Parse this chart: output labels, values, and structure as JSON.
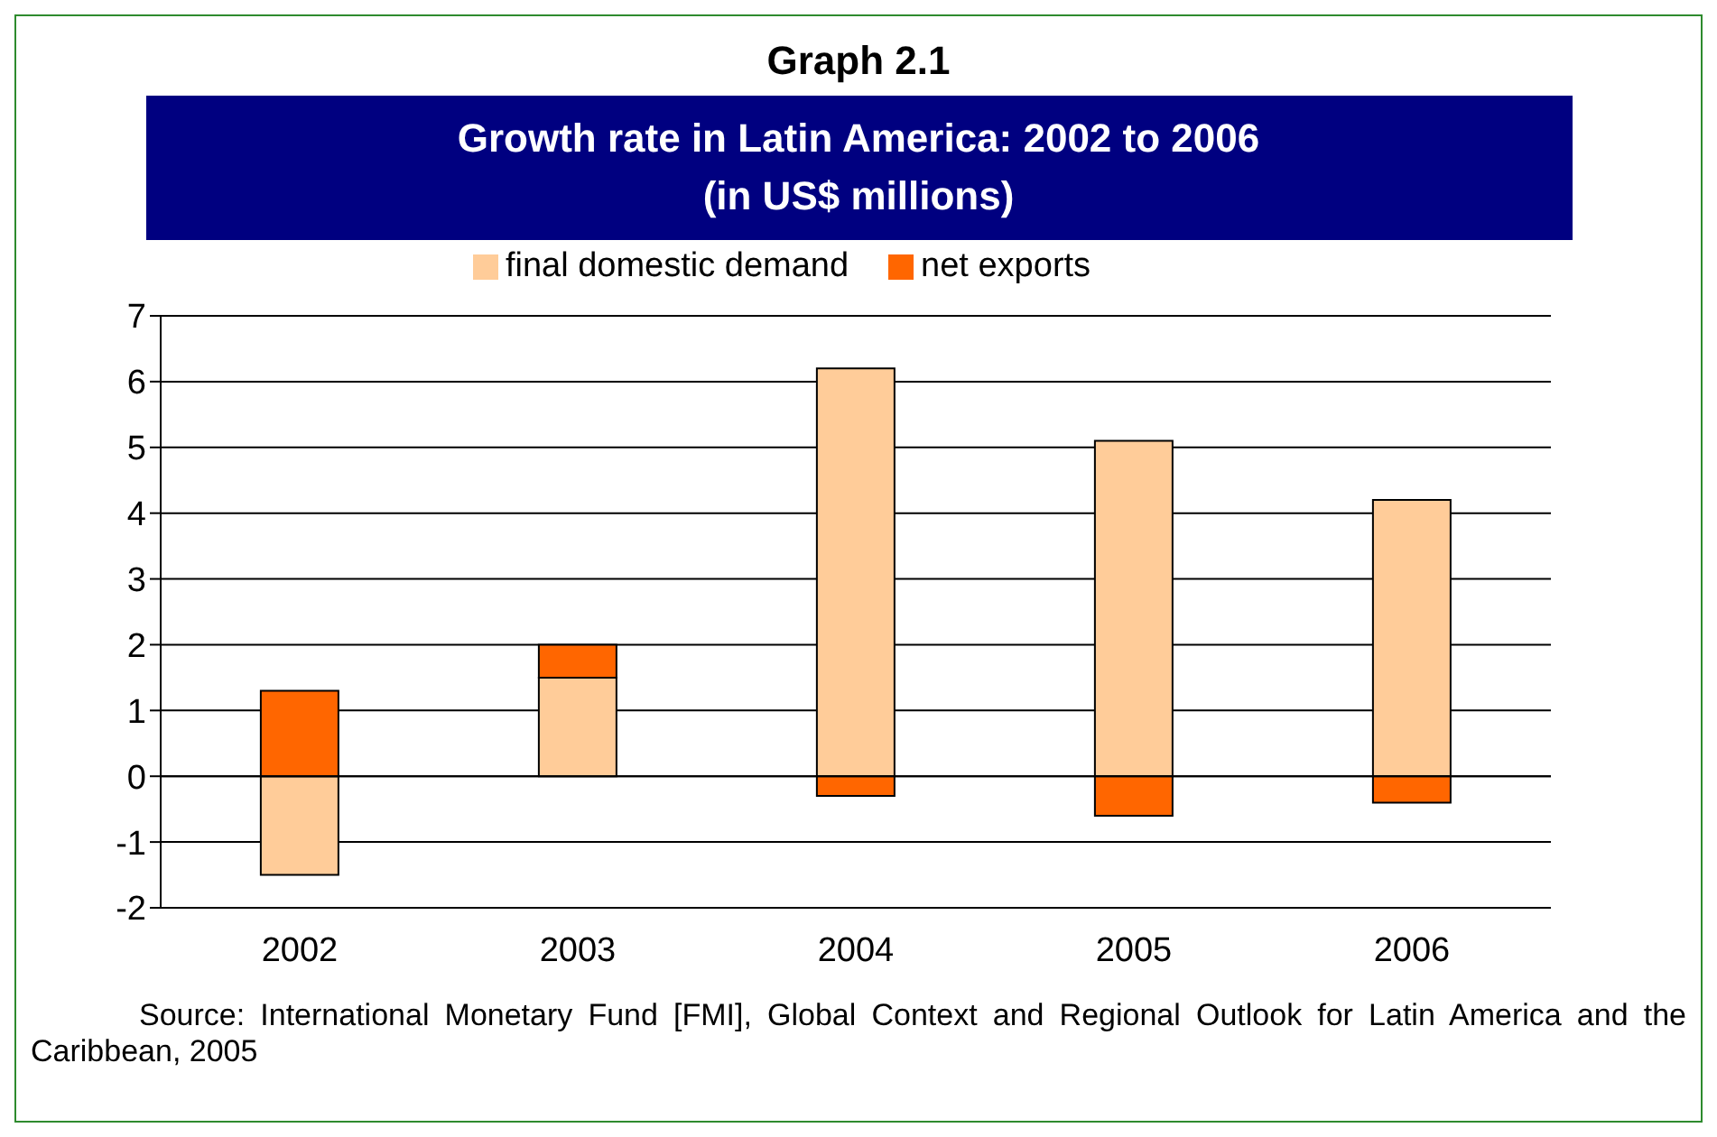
{
  "chart_data": {
    "type": "bar",
    "title": "Graph 2.1",
    "subtitle": "Growth rate in Latin America: 2002 to 2006\n(in US$ millions)",
    "categories": [
      "2002",
      "2003",
      "2004",
      "2005",
      "2006"
    ],
    "stacked": true,
    "series": [
      {
        "name": "final domestic demand",
        "color": "#ffcc99",
        "values": [
          -1.5,
          1.5,
          6.2,
          5.1,
          4.2
        ]
      },
      {
        "name": "net exports",
        "color": "#ff6600",
        "values": [
          1.3,
          0.5,
          -0.3,
          -0.6,
          -0.4
        ]
      }
    ],
    "ylim": [
      -2,
      7
    ],
    "yticks": [
      -2,
      -1,
      0,
      1,
      2,
      3,
      4,
      5,
      6,
      7
    ],
    "grid": "y",
    "legend": "top",
    "annotations": [
      "Source: International Monetary Fund [FMI], Global Context and Regional Outlook for Latin America and the Caribbean, 2005"
    ]
  }
}
